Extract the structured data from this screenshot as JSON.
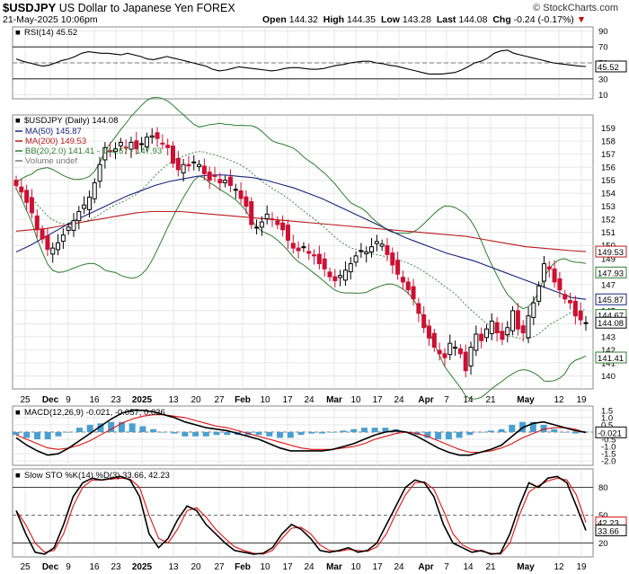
{
  "header": {
    "symbol": "$USDJPY",
    "name": "US Dollar to Japanese Yen",
    "exchange": "FOREX",
    "date": "21-May-2025 10:06pm",
    "brand": "© StockCharts.com",
    "open_label": "Open",
    "open": "144.32",
    "high_label": "High",
    "high": "144.35",
    "low_label": "Low",
    "low": "143.28",
    "last_label": "Last",
    "last": "144.08",
    "chg_label": "Chg",
    "chg": "-0.24 (-0.17%)",
    "chg_arrow": "▼"
  },
  "colors": {
    "up": "#000000",
    "down": "#cc1133",
    "ma50": "#1a237e",
    "ma200": "#b71c1c",
    "bb": "#2e7d32",
    "rsi": "#000000",
    "macd": "#000000",
    "signal": "#d11",
    "hist": "#4a9fd0",
    "sto_k": "#000000",
    "sto_d": "#d11",
    "grid": "#dddddd"
  },
  "chart_data": [
    {
      "type": "line",
      "title": "RSI(14) 45.52",
      "y_ticks": [
        "90",
        "70",
        "50",
        "30",
        "10"
      ],
      "levels": [
        70,
        30
      ],
      "ylim": [
        5,
        95
      ],
      "last_label": "45.52",
      "series": [
        {
          "name": "RSI(14)",
          "values": [
            55,
            52,
            50,
            48,
            46,
            47,
            50,
            53,
            55,
            58,
            62,
            64,
            63,
            62,
            62,
            61,
            60,
            62,
            60,
            58,
            55,
            54,
            56,
            58,
            56,
            54,
            52,
            50,
            48,
            46,
            42,
            40,
            41,
            43,
            45,
            44,
            43,
            42,
            41,
            40,
            41,
            43,
            44,
            44,
            43,
            42,
            42,
            43,
            45,
            47,
            48,
            50,
            51,
            52,
            52,
            50,
            49,
            47,
            46,
            44,
            42,
            40,
            38,
            36,
            36,
            36,
            37,
            38,
            41,
            45,
            50,
            52,
            56,
            62,
            65,
            66,
            62,
            60,
            58,
            56,
            54,
            52,
            50,
            49,
            48,
            47,
            46,
            45.52
          ]
        }
      ]
    },
    {
      "type": "line",
      "title": "$USDJPY (Daily) 144.08",
      "ylim": [
        139,
        160
      ],
      "y_ticks": [
        "159",
        "158",
        "157",
        "156",
        "155",
        "154",
        "153",
        "152",
        "151",
        "150",
        "149",
        "148",
        "147",
        "146",
        "145",
        "144",
        "143",
        "142",
        "141",
        "140"
      ],
      "legend": [
        {
          "label": "MA(50) 145.87",
          "color": "#1a237e"
        },
        {
          "label": "MA(200) 149.53",
          "color": "#b71c1c"
        },
        {
          "label": "BB(20,2.0) 141.41 - 144.67 - 147.93",
          "color": "#2e7d32"
        },
        {
          "label": "Volume undef",
          "color": "#777777"
        }
      ],
      "price_tags": [
        {
          "text": "149.53",
          "value": 149.53,
          "color": "#b71c1c"
        },
        {
          "text": "147.93",
          "value": 147.93,
          "color": "#2e7d32"
        },
        {
          "text": "145.87",
          "value": 145.87,
          "color": "#1a237e"
        },
        {
          "text": "144.67",
          "value": 144.67,
          "color": "#2e7d32"
        },
        {
          "text": "144.08",
          "value": 144.08,
          "color": "#000000"
        },
        {
          "text": "141.41",
          "value": 141.41,
          "color": "#2e7d32"
        }
      ],
      "close": [
        154.6,
        154.1,
        153.3,
        152.5,
        151.2,
        150.5,
        149.7,
        149.8,
        150.2,
        150.8,
        151.4,
        151.9,
        152.6,
        153.1,
        153.7,
        154.8,
        156.2,
        157.5,
        157.2,
        157.4,
        157.9,
        157.5,
        157.9,
        157.4,
        157.8,
        158.3,
        158.4,
        158.2,
        157.8,
        157.5,
        156.3,
        155.8,
        156.2,
        156.1,
        156.4,
        156.2,
        155.5,
        155.0,
        155.3,
        154.8,
        155.0,
        154.6,
        154.3,
        153.6,
        153.0,
        151.6,
        151.4,
        151.8,
        152.4,
        152.0,
        151.6,
        151.2,
        150.4,
        149.8,
        149.6,
        149.9,
        149.4,
        149.2,
        148.6,
        148.2,
        147.6,
        147.3,
        147.7,
        148.1,
        148.6,
        149.2,
        149.6,
        149.5,
        149.9,
        150.3,
        150.1,
        149.3,
        148.5,
        147.8,
        147.2,
        146.6,
        145.9,
        144.8,
        143.7,
        142.9,
        142.2,
        141.7,
        141.4,
        142.5,
        142.2,
        141.7,
        140.4,
        142.2,
        143.2,
        142.7,
        143.6,
        144.2,
        143.3,
        142.8,
        143.7,
        145.0,
        143.6,
        143.3,
        144.6,
        145.6,
        146.9,
        148.6,
        148.2,
        147.2,
        146.6,
        145.9,
        145.6,
        144.6,
        144.3,
        144.08
      ],
      "series": [
        {
          "name": "MA(50)",
          "values": [
            149.5,
            150.0,
            150.6,
            151.2,
            151.8,
            152.3,
            152.8,
            153.3,
            153.8,
            154.2,
            154.6,
            154.9,
            155.1,
            155.3,
            155.4,
            155.4,
            155.3,
            155.2,
            155.0,
            154.7,
            154.4,
            154.0,
            153.6,
            153.1,
            152.6,
            152.1,
            151.6,
            151.1,
            150.6,
            150.2,
            149.8,
            149.4,
            149.1,
            148.8,
            148.4,
            148.0,
            147.6,
            147.2,
            146.8,
            146.4,
            146.0,
            145.87
          ]
        },
        {
          "name": "MA(200)",
          "values": [
            151.1,
            151.2,
            151.3,
            151.5,
            151.7,
            151.9,
            152.1,
            152.3,
            152.5,
            152.6,
            152.6,
            152.6,
            152.5,
            152.4,
            152.3,
            152.2,
            152.1,
            152.0,
            151.9,
            151.8,
            151.7,
            151.6,
            151.5,
            151.4,
            151.3,
            151.2,
            151.1,
            151.0,
            150.9,
            150.8,
            150.7,
            150.5,
            150.3,
            150.1,
            149.9,
            149.8,
            149.7,
            149.6,
            149.53
          ]
        }
      ]
    },
    {
      "type": "line",
      "title": "MACD(12,26,9) -0.021, -0.057, 0.036",
      "ylim": [
        -2.3,
        1.8
      ],
      "y_ticks": [
        "1.5",
        "1.0",
        "0.5",
        "0.0",
        "-0.5",
        "-1.0",
        "-1.5",
        "-2.0"
      ],
      "last_label": "-0.021",
      "series": [
        {
          "name": "MACD(12,26,9)",
          "values": [
            -0.4,
            -0.9,
            -1.3,
            -1.6,
            -1.5,
            -1.1,
            -0.6,
            -0.1,
            0.4,
            0.9,
            1.3,
            1.5,
            1.5,
            1.4,
            1.2,
            1.0,
            0.7,
            0.5,
            0.3,
            0.2,
            0.1,
            -0.1,
            -0.3,
            -0.5,
            -0.8,
            -1.1,
            -1.3,
            -1.3,
            -1.3,
            -1.3,
            -1.2,
            -1.0,
            -0.8,
            -0.5,
            -0.2,
            0.0,
            0.1,
            0.0,
            -0.3,
            -0.7,
            -1.1,
            -1.4,
            -1.6,
            -1.6,
            -1.4,
            -1.2,
            -0.9,
            -0.3,
            0.3,
            0.6,
            0.7,
            0.5,
            0.3,
            0.1,
            -0.021
          ]
        },
        {
          "name": "Signal",
          "values": [
            -0.2,
            -0.5,
            -0.8,
            -1.1,
            -1.2,
            -1.1,
            -0.9,
            -0.6,
            -0.2,
            0.2,
            0.6,
            0.9,
            1.1,
            1.2,
            1.2,
            1.1,
            1.0,
            0.8,
            0.6,
            0.4,
            0.3,
            0.1,
            -0.1,
            -0.3,
            -0.5,
            -0.7,
            -0.9,
            -1.1,
            -1.2,
            -1.2,
            -1.2,
            -1.1,
            -1.0,
            -0.8,
            -0.5,
            -0.3,
            -0.1,
            0.0,
            -0.1,
            -0.3,
            -0.6,
            -0.9,
            -1.2,
            -1.4,
            -1.4,
            -1.3,
            -1.1,
            -0.8,
            -0.4,
            -0.1,
            0.2,
            0.3,
            0.3,
            0.2,
            -0.057
          ]
        }
      ]
    },
    {
      "type": "line",
      "title": "Slow STO %K(14) %D(3) 33.66, 42.23",
      "ylim": [
        5,
        100
      ],
      "y_ticks": [
        "80",
        "50",
        "20"
      ],
      "levels": [
        80,
        50,
        20
      ],
      "last_labels": [
        "42.23",
        "33.66"
      ],
      "series": [
        {
          "name": "%K(14)",
          "values": [
            55,
            30,
            10,
            8,
            15,
            40,
            70,
            85,
            90,
            88,
            90,
            92,
            88,
            70,
            30,
            15,
            25,
            45,
            60,
            55,
            40,
            30,
            20,
            12,
            10,
            8,
            9,
            15,
            30,
            40,
            35,
            25,
            12,
            10,
            12,
            15,
            10,
            12,
            20,
            40,
            60,
            80,
            88,
            85,
            70,
            40,
            20,
            15,
            10,
            12,
            8,
            9,
            30,
            60,
            85,
            80,
            90,
            92,
            85,
            60,
            33.66
          ]
        },
        {
          "name": "%D(3)",
          "values": [
            55,
            40,
            20,
            10,
            12,
            30,
            60,
            80,
            88,
            88,
            89,
            90,
            89,
            80,
            50,
            25,
            20,
            35,
            55,
            58,
            48,
            35,
            25,
            16,
            12,
            9,
            8,
            12,
            25,
            36,
            37,
            30,
            18,
            12,
            11,
            13,
            12,
            11,
            16,
            30,
            52,
            72,
            85,
            86,
            78,
            55,
            30,
            18,
            13,
            11,
            9,
            8,
            20,
            50,
            75,
            82,
            87,
            90,
            88,
            72,
            42.23
          ]
        }
      ]
    }
  ],
  "x_axis": {
    "labels": [
      {
        "text": "25",
        "x": 28
      },
      {
        "text": "Dec",
        "x": 56,
        "bold": true
      },
      {
        "text": "9",
        "x": 76
      },
      {
        "text": "16",
        "x": 105
      },
      {
        "text": "23",
        "x": 129
      },
      {
        "text": "2025",
        "x": 158,
        "bold": true
      },
      {
        "text": "13",
        "x": 193
      },
      {
        "text": "20",
        "x": 218
      },
      {
        "text": "27",
        "x": 244
      },
      {
        "text": "Feb",
        "x": 270,
        "bold": true
      },
      {
        "text": "10",
        "x": 295
      },
      {
        "text": "17",
        "x": 320
      },
      {
        "text": "24",
        "x": 344
      },
      {
        "text": "Mar",
        "x": 372,
        "bold": true
      },
      {
        "text": "10",
        "x": 396
      },
      {
        "text": "17",
        "x": 420
      },
      {
        "text": "24",
        "x": 444
      },
      {
        "text": "Apr",
        "x": 474,
        "bold": true
      },
      {
        "text": "7",
        "x": 497
      },
      {
        "text": "14",
        "x": 521
      },
      {
        "text": "21",
        "x": 546
      },
      {
        "text": "May",
        "x": 585,
        "bold": true
      },
      {
        "text": "12",
        "x": 622
      },
      {
        "text": "19",
        "x": 647
      }
    ]
  }
}
